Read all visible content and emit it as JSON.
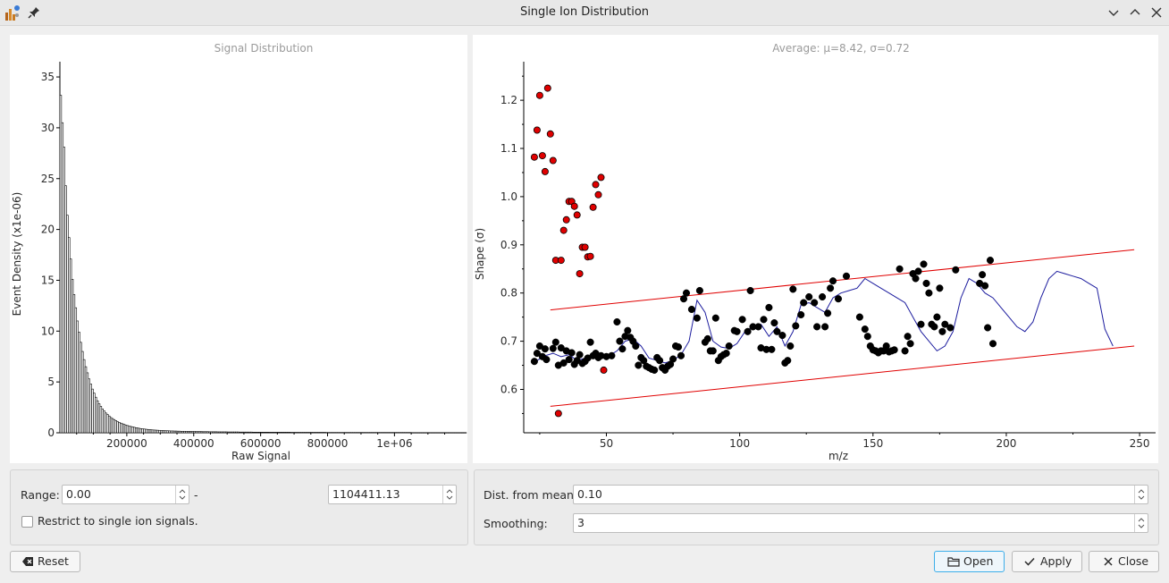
{
  "window": {
    "title": "Single Ion Distribution"
  },
  "left_chart_title": "Signal Distribution",
  "right_chart_title": "Average: μ=8.42, σ=0.72",
  "controls": {
    "range_label": "Range:",
    "range_min": "0.00",
    "range_sep": "-",
    "range_max": "1104411.13",
    "restrict_label": "Restrict to single ion signals.",
    "dist_label": "Dist. from mean:",
    "dist_value": "0.10",
    "smoothing_label": "Smoothing:",
    "smoothing_value": "3"
  },
  "buttons": {
    "reset": "Reset",
    "open": "Open",
    "apply": "Apply",
    "close": "Close"
  },
  "icons": [
    "app-icon",
    "pin-icon",
    "minimize-icon",
    "maximize-icon",
    "close-window-icon",
    "reset-icon",
    "open-folder-icon",
    "checkmark-icon",
    "close-icon"
  ],
  "colors": {
    "outlier": "#e00000",
    "point": "#000000",
    "smooth_line": "#1c1c9e",
    "bound_line": "#e00000",
    "focus": "#3daee9"
  },
  "chart_data": [
    {
      "type": "bar",
      "title": "Signal Distribution",
      "xlabel": "Raw Signal",
      "ylabel": "Event Density (x1e-06)",
      "xlim": [
        0,
        1210000
      ],
      "ylim": [
        0,
        36.5
      ],
      "xticks": [
        200000,
        400000,
        600000,
        800000,
        1000000
      ],
      "xtick_labels": [
        "200000",
        "400000",
        "600000",
        "800000",
        "1e+06"
      ],
      "yticks": [
        0,
        5,
        10,
        15,
        20,
        25,
        30,
        35
      ],
      "bin_width": 5000,
      "values": [
        33.2,
        30.5,
        28.1,
        24.3,
        21.4,
        19.2,
        17.1,
        15.1,
        13.6,
        12.3,
        11.0,
        9.9,
        8.9,
        8.0,
        7.2,
        6.5,
        5.9,
        5.3,
        4.8,
        4.3,
        3.9,
        3.5,
        3.15,
        2.85,
        2.6,
        2.35,
        2.15,
        1.95,
        1.8,
        1.65,
        1.5,
        1.4,
        1.3,
        1.2,
        1.1,
        1.02,
        0.95,
        0.88,
        0.82,
        0.76,
        0.71,
        0.66,
        0.62,
        0.58,
        0.54,
        0.5,
        0.47,
        0.44,
        0.41,
        0.39,
        0.37,
        0.35,
        0.33,
        0.31,
        0.3,
        0.28,
        0.27,
        0.26,
        0.25,
        0.24,
        0.23,
        0.22,
        0.21,
        0.2,
        0.2,
        0.19,
        0.18,
        0.18,
        0.17,
        0.17,
        0.16,
        0.16,
        0.15,
        0.15,
        0.15,
        0.14,
        0.14,
        0.14,
        0.13,
        0.13,
        0.13,
        0.12,
        0.12,
        0.12,
        0.12,
        0.11,
        0.11,
        0.11,
        0.11,
        0.1,
        0.1,
        0.1,
        0.1,
        0.1,
        0.09,
        0.09,
        0.09,
        0.09,
        0.09,
        0.09,
        0.08,
        0.08,
        0.08,
        0.08,
        0.08,
        0.08,
        0.08,
        0.07,
        0.07,
        0.07,
        0.07,
        0.07,
        0.07,
        0.07,
        0.07,
        0.06,
        0.06,
        0.06,
        0.06,
        0.06,
        0.06,
        0.06,
        0.06,
        0.06,
        0.06,
        0.05,
        0.05,
        0.05,
        0.05,
        0.05,
        0.05,
        0.05,
        0.05,
        0.05,
        0.05,
        0.05,
        0.05,
        0.05,
        0.04,
        0.04,
        0.04,
        0.04,
        0.04,
        0.04,
        0.04,
        0.04,
        0.04,
        0.04,
        0.04,
        0.04,
        0.04,
        0.04,
        0.04,
        0.04,
        0.04,
        0.04,
        0.04,
        0.04,
        0.04,
        0.03,
        0.03,
        0.03,
        0.03,
        0.03,
        0.03,
        0.03,
        0.03,
        0.03,
        0.03,
        0.03,
        0.03,
        0.03,
        0.03,
        0.03,
        0.03,
        0.03,
        0.03,
        0.03,
        0.03,
        0.03,
        0.03,
        0.03,
        0.03,
        0.03,
        0.03,
        0.03,
        0.03,
        0.03,
        0.03,
        0.03,
        0.03,
        0.03,
        0.03,
        0.03,
        0.03,
        0.03,
        0.03,
        0.03,
        0.03,
        0.03,
        0.03,
        0.03,
        0.03,
        0.03,
        0.03,
        0.03,
        0.03,
        0.03,
        0.03,
        0.03,
        0.02,
        0.02,
        0.02,
        0.02,
        0.02,
        0.02,
        0.02,
        0.02,
        0.02,
        0.02,
        0.02,
        0.02,
        0.02,
        0.02,
        0.02,
        0.02,
        0.02,
        0.02,
        0.02,
        0.02,
        0.02,
        0.02,
        0.02,
        0.02,
        0.02,
        0.02,
        0.02,
        0.02,
        0.02,
        0.02,
        0.02,
        0.02,
        0.02
      ]
    },
    {
      "type": "scatter",
      "title": "Average: μ=8.42, σ=0.72",
      "xlabel": "m/z",
      "ylabel": "Shape (σ)",
      "xlim": [
        19,
        256
      ],
      "ylim": [
        0.51,
        1.28
      ],
      "xticks": [
        50,
        100,
        150,
        200,
        250
      ],
      "yticks": [
        0.6,
        0.7,
        0.8,
        0.9,
        1.0,
        1.1,
        1.2
      ],
      "series": [
        {
          "marker": "black-dot",
          "points": [
            [
              23,
              0.658
            ],
            [
              24,
              0.675
            ],
            [
              25,
              0.69
            ],
            [
              26,
              0.668
            ],
            [
              27,
              0.684
            ],
            [
              27.5,
              0.662
            ],
            [
              30,
              0.685
            ],
            [
              31,
              0.698
            ],
            [
              32,
              0.65
            ],
            [
              33,
              0.686
            ],
            [
              34,
              0.655
            ],
            [
              35,
              0.68
            ],
            [
              36,
              0.662
            ],
            [
              37,
              0.676
            ],
            [
              38,
              0.652
            ],
            [
              39,
              0.66
            ],
            [
              40,
              0.672
            ],
            [
              41,
              0.654
            ],
            [
              42,
              0.658
            ],
            [
              43,
              0.665
            ],
            [
              44,
              0.698
            ],
            [
              45,
              0.67
            ],
            [
              46,
              0.675
            ],
            [
              47,
              0.666
            ],
            [
              48,
              0.67
            ],
            [
              50,
              0.668
            ],
            [
              52,
              0.67
            ],
            [
              54,
              0.74
            ],
            [
              55,
              0.7
            ],
            [
              56,
              0.684
            ],
            [
              57,
              0.71
            ],
            [
              58,
              0.722
            ],
            [
              59,
              0.708
            ],
            [
              60,
              0.7
            ],
            [
              61,
              0.69
            ],
            [
              62,
              0.65
            ],
            [
              63,
              0.666
            ],
            [
              64,
              0.66
            ],
            [
              65,
              0.648
            ],
            [
              66,
              0.645
            ],
            [
              67,
              0.642
            ],
            [
              68,
              0.64
            ],
            [
              69,
              0.666
            ],
            [
              70,
              0.66
            ],
            [
              71,
              0.645
            ],
            [
              72,
              0.64
            ],
            [
              73,
              0.648
            ],
            [
              74,
              0.652
            ],
            [
              75,
              0.663
            ],
            [
              76,
              0.69
            ],
            [
              77,
              0.688
            ],
            [
              78,
              0.67
            ],
            [
              79,
              0.788
            ],
            [
              80,
              0.8
            ],
            [
              82,
              0.766
            ],
            [
              84,
              0.748
            ],
            [
              85,
              0.805
            ],
            [
              87,
              0.698
            ],
            [
              88,
              0.705
            ],
            [
              89,
              0.68
            ],
            [
              90,
              0.68
            ],
            [
              91,
              0.748
            ],
            [
              92,
              0.66
            ],
            [
              93,
              0.668
            ],
            [
              94,
              0.672
            ],
            [
              95,
              0.675
            ],
            [
              96,
              0.69
            ],
            [
              98,
              0.722
            ],
            [
              99,
              0.72
            ],
            [
              101,
              0.745
            ],
            [
              103,
              0.72
            ],
            [
              104,
              0.805
            ],
            [
              105,
              0.73
            ],
            [
              107,
              0.73
            ],
            [
              108,
              0.686
            ],
            [
              109,
              0.745
            ],
            [
              110,
              0.683
            ],
            [
              111,
              0.77
            ],
            [
              112,
              0.683
            ],
            [
              113,
              0.738
            ],
            [
              114,
              0.72
            ],
            [
              116,
              0.712
            ],
            [
              117,
              0.655
            ],
            [
              118,
              0.66
            ],
            [
              119,
              0.69
            ],
            [
              120,
              0.808
            ],
            [
              121,
              0.732
            ],
            [
              123,
              0.755
            ],
            [
              124,
              0.78
            ],
            [
              126,
              0.792
            ],
            [
              128,
              0.78
            ],
            [
              129,
              0.73
            ],
            [
              131,
              0.792
            ],
            [
              132,
              0.73
            ],
            [
              133,
              0.758
            ],
            [
              134,
              0.81
            ],
            [
              135,
              0.825
            ],
            [
              137,
              0.788
            ],
            [
              140,
              0.835
            ],
            [
              145,
              0.75
            ],
            [
              147,
              0.725
            ],
            [
              148,
              0.71
            ],
            [
              149,
              0.69
            ],
            [
              150,
              0.682
            ],
            [
              151,
              0.68
            ],
            [
              152,
              0.676
            ],
            [
              153,
              0.68
            ],
            [
              154,
              0.68
            ],
            [
              155,
              0.69
            ],
            [
              156,
              0.678
            ],
            [
              157,
              0.68
            ],
            [
              158,
              0.682
            ],
            [
              160,
              0.85
            ],
            [
              162,
              0.68
            ],
            [
              163,
              0.71
            ],
            [
              164,
              0.695
            ],
            [
              165,
              0.84
            ],
            [
              166,
              0.83
            ],
            [
              167,
              0.845
            ],
            [
              168,
              0.735
            ],
            [
              169,
              0.86
            ],
            [
              170,
              0.82
            ],
            [
              171,
              0.8
            ],
            [
              172,
              0.735
            ],
            [
              173,
              0.73
            ],
            [
              174,
              0.75
            ],
            [
              175,
              0.81
            ],
            [
              176,
              0.72
            ],
            [
              177,
              0.735
            ],
            [
              179,
              0.728
            ],
            [
              181,
              0.848
            ],
            [
              190,
              0.82
            ],
            [
              191,
              0.838
            ],
            [
              192,
              0.815
            ],
            [
              193,
              0.728
            ],
            [
              194,
              0.868
            ],
            [
              195,
              0.695
            ]
          ]
        },
        {
          "marker": "red-outlier",
          "points": [
            [
              23,
              1.082
            ],
            [
              24,
              1.138
            ],
            [
              25,
              1.21
            ],
            [
              26,
              1.085
            ],
            [
              27,
              1.052
            ],
            [
              28,
              1.225
            ],
            [
              29,
              1.13
            ],
            [
              30,
              1.075
            ],
            [
              31,
              0.868
            ],
            [
              32,
              0.55
            ],
            [
              33,
              0.868
            ],
            [
              34,
              0.93
            ],
            [
              35,
              0.952
            ],
            [
              36,
              0.99
            ],
            [
              37,
              0.99
            ],
            [
              38,
              0.98
            ],
            [
              39,
              0.962
            ],
            [
              40,
              0.84
            ],
            [
              41,
              0.895
            ],
            [
              42,
              0.895
            ],
            [
              43,
              0.875
            ],
            [
              44,
              0.876
            ],
            [
              45,
              0.978
            ],
            [
              46,
              1.025
            ],
            [
              47,
              1.004
            ],
            [
              48,
              1.04
            ],
            [
              49,
              0.64
            ]
          ]
        },
        {
          "name": "smoothed",
          "x": [
            24,
            27,
            30,
            33,
            36,
            39,
            42,
            45,
            48,
            51,
            54,
            57,
            60,
            63,
            66,
            69,
            72,
            75,
            78,
            81,
            84,
            87,
            90,
            93,
            96,
            99,
            102,
            105,
            108,
            111,
            114,
            117,
            120,
            123,
            126,
            129,
            132,
            135,
            138,
            141,
            144,
            147,
            150,
            153,
            156,
            159,
            162,
            165,
            168,
            171,
            174,
            177,
            180,
            183,
            186,
            189,
            192,
            195,
            198,
            201,
            204,
            207,
            210,
            213,
            216,
            219,
            222,
            225,
            228,
            231,
            234,
            237,
            240
          ],
          "y": [
            0.66,
            0.67,
            0.675,
            0.668,
            0.672,
            0.66,
            0.665,
            0.67,
            0.672,
            0.67,
            0.68,
            0.7,
            0.705,
            0.69,
            0.665,
            0.66,
            0.655,
            0.66,
            0.672,
            0.7,
            0.785,
            0.76,
            0.7,
            0.688,
            0.685,
            0.695,
            0.72,
            0.73,
            0.735,
            0.71,
            0.73,
            0.69,
            0.72,
            0.775,
            0.78,
            0.77,
            0.76,
            0.79,
            0.8,
            0.805,
            0.81,
            0.83,
            0.82,
            0.81,
            0.8,
            0.79,
            0.78,
            0.75,
            0.72,
            0.7,
            0.68,
            0.69,
            0.72,
            0.79,
            0.83,
            0.82,
            0.8,
            0.79,
            0.77,
            0.75,
            0.73,
            0.72,
            0.74,
            0.79,
            0.83,
            0.845,
            0.84,
            0.835,
            0.83,
            0.82,
            0.81,
            0.725,
            0.69
          ]
        },
        {
          "name": "upper-bound",
          "x": [
            29,
            248
          ],
          "y": [
            0.765,
            0.89
          ]
        },
        {
          "name": "lower-bound",
          "x": [
            29,
            248
          ],
          "y": [
            0.565,
            0.69
          ]
        }
      ]
    }
  ]
}
